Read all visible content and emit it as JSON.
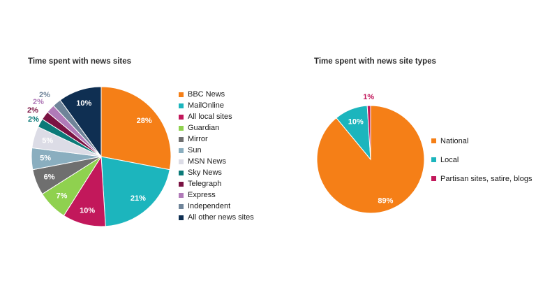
{
  "chart_data": [
    {
      "type": "pie",
      "title": "Time spent with news sites",
      "categories": [
        "BBC News",
        "MailOnline",
        "All local sites",
        "Guardian",
        "Mirror",
        "Sun",
        "MSN News",
        "Sky News",
        "Telegraph",
        "Express",
        "Independent",
        "All other news sites"
      ],
      "values": [
        28,
        21,
        10,
        7,
        6,
        5,
        5,
        2,
        2,
        2,
        2,
        10
      ],
      "value_labels": [
        "28%",
        "21%",
        "10%",
        "7%",
        "6%",
        "5%",
        "5%",
        "2%",
        "2%",
        "2%",
        "2%",
        "10%"
      ],
      "colors": [
        "#f57f17",
        "#1cb5bd",
        "#c2185b",
        "#8fd14f",
        "#6f6f6f",
        "#8aaebf",
        "#dcdce6",
        "#0b7a78",
        "#7a1242",
        "#b07ab8",
        "#6f8499",
        "#0f2f52"
      ],
      "legend_position": "right"
    },
    {
      "type": "pie",
      "title": "Time spent with news site types",
      "categories": [
        "National",
        "Local",
        "Partisan sites, satire, blogs"
      ],
      "values": [
        89,
        10,
        1
      ],
      "value_labels": [
        "89%",
        "10%",
        "1%"
      ],
      "colors": [
        "#f57f17",
        "#1cb5bd",
        "#c2185b"
      ],
      "legend_position": "right"
    }
  ]
}
